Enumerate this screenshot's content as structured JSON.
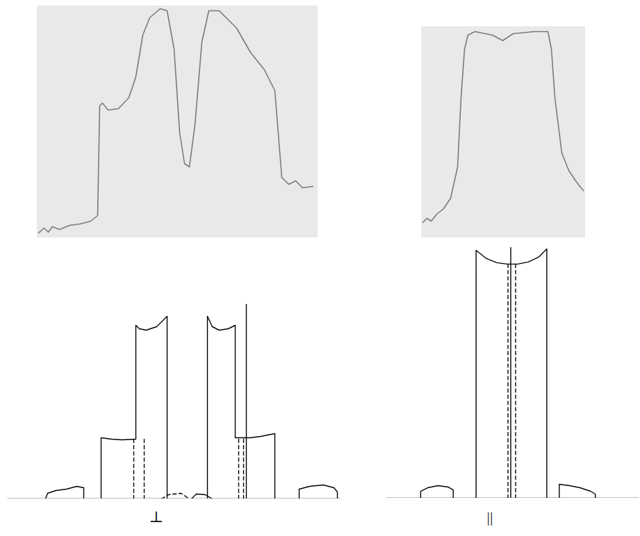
{
  "chart_data": [
    {
      "type": "line",
      "tick_labels": false,
      "xlim": [
        0,
        400
      ],
      "ylim": [
        0,
        330
      ],
      "series": [
        {
          "color": "#7a7a7a",
          "line_style": "solid",
          "x": [
            0,
            8,
            14,
            20,
            30,
            45,
            60,
            75,
            85,
            88,
            92,
            100,
            115,
            130,
            140,
            150,
            160,
            175,
            185,
            195,
            203,
            210,
            217,
            225,
            235,
            245,
            260,
            285,
            305,
            325,
            340,
            350,
            360,
            370,
            380,
            395
          ],
          "values": [
            5,
            12,
            6,
            14,
            10,
            16,
            18,
            22,
            30,
            188,
            192,
            182,
            184,
            200,
            230,
            290,
            315,
            328,
            325,
            270,
            150,
            105,
            100,
            160,
            280,
            325,
            325,
            300,
            265,
            240,
            210,
            85,
            75,
            80,
            70,
            72
          ]
        }
      ]
    },
    {
      "type": "line",
      "tick_labels": false,
      "xlim": [
        0,
        232
      ],
      "ylim": [
        0,
        300
      ],
      "series": [
        {
          "color": "#7a7a7a",
          "line_style": "solid",
          "x": [
            0,
            6,
            12,
            20,
            30,
            40,
            50,
            55,
            60,
            65,
            75,
            100,
            115,
            130,
            160,
            180,
            185,
            190,
            200,
            210,
            216,
            220,
            226,
            232
          ],
          "values": [
            20,
            26,
            22,
            32,
            40,
            55,
            100,
            200,
            270,
            290,
            295,
            290,
            282,
            292,
            295,
            295,
            270,
            200,
            120,
            95,
            86,
            80,
            72,
            65
          ]
        }
      ]
    },
    {
      "type": "line",
      "tick_labels": false,
      "xlim": [
        0,
        480
      ],
      "ylim": [
        0,
        300
      ],
      "xlabel": "⊥",
      "series": [
        {
          "color": "#000000",
          "line_style": "solid",
          "x": [
            0,
            480
          ],
          "values": [
            0,
            0
          ]
        },
        {
          "color": "#000000",
          "line_style": "solid",
          "x": [
            55,
            58,
            70,
            85,
            100,
            110,
            110
          ],
          "values": [
            0,
            8,
            12,
            14,
            18,
            16,
            0
          ]
        },
        {
          "color": "#000000",
          "line_style": "solid",
          "x": [
            135,
            135,
            150,
            165,
            185,
            185,
            190,
            200,
            215,
            230,
            230
          ],
          "values": [
            0,
            88,
            86,
            85,
            86,
            250,
            245,
            243,
            248,
            263,
            0
          ]
        },
        {
          "color": "#000000",
          "line_style": "solid",
          "x": [
            288,
            288,
            295,
            305,
            318,
            328,
            328,
            350,
            365,
            385,
            385
          ],
          "values": [
            0,
            263,
            248,
            243,
            245,
            250,
            88,
            88,
            90,
            94,
            0
          ]
        },
        {
          "color": "#000000",
          "line_style": "solid",
          "x": [
            344,
            344
          ],
          "values": [
            0,
            280
          ]
        },
        {
          "color": "#000000",
          "line_style": "solid",
          "x": [
            420,
            420,
            435,
            455,
            470,
            475,
            475
          ],
          "values": [
            0,
            14,
            18,
            20,
            16,
            10,
            0
          ]
        },
        {
          "color": "#000000",
          "line_style": "solid",
          "x": [
            265,
            272,
            285,
            295
          ],
          "values": [
            0,
            7,
            6,
            0
          ]
        },
        {
          "color": "#000000",
          "line_style": "dashed",
          "x": [
            182,
            182
          ],
          "values": [
            0,
            86
          ]
        },
        {
          "color": "#000000",
          "line_style": "dashed",
          "x": [
            197,
            197
          ],
          "values": [
            0,
            86
          ]
        },
        {
          "color": "#000000",
          "line_style": "dashed",
          "x": [
            333,
            333
          ],
          "values": [
            0,
            88
          ]
        },
        {
          "color": "#000000",
          "line_style": "dashed",
          "x": [
            340,
            340
          ],
          "values": [
            0,
            88
          ]
        },
        {
          "color": "#000000",
          "line_style": "dashed",
          "x": [
            222,
            232,
            250,
            262
          ],
          "values": [
            0,
            6,
            8,
            0
          ]
        }
      ]
    },
    {
      "type": "line",
      "tick_labels": false,
      "xlim": [
        0,
        365
      ],
      "ylim": [
        0,
        370
      ],
      "xlabel": "||",
      "series": [
        {
          "color": "#000000",
          "line_style": "solid",
          "x": [
            0,
            365
          ],
          "values": [
            0,
            0
          ]
        },
        {
          "color": "#000000",
          "line_style": "solid",
          "x": [
            50,
            50,
            60,
            75,
            90,
            97,
            97
          ],
          "values": [
            0,
            10,
            15,
            18,
            16,
            12,
            0
          ]
        },
        {
          "color": "#000000",
          "line_style": "solid",
          "x": [
            130,
            130,
            145,
            160,
            175,
            190,
            205,
            220,
            232,
            232
          ],
          "values": [
            0,
            358,
            346,
            340,
            338,
            338,
            341,
            348,
            360,
            0
          ]
        },
        {
          "color": "#000000",
          "line_style": "solid",
          "x": [
            180,
            180
          ],
          "values": [
            0,
            362
          ]
        },
        {
          "color": "#000000",
          "line_style": "dashed",
          "x": [
            176,
            176
          ],
          "values": [
            0,
            338
          ]
        },
        {
          "color": "#000000",
          "line_style": "dashed",
          "x": [
            187,
            187
          ],
          "values": [
            0,
            338
          ]
        },
        {
          "color": "#000000",
          "line_style": "solid",
          "x": [
            250,
            250,
            265,
            280,
            295,
            302,
            302
          ],
          "values": [
            0,
            20,
            18,
            15,
            10,
            6,
            0
          ]
        }
      ]
    }
  ]
}
